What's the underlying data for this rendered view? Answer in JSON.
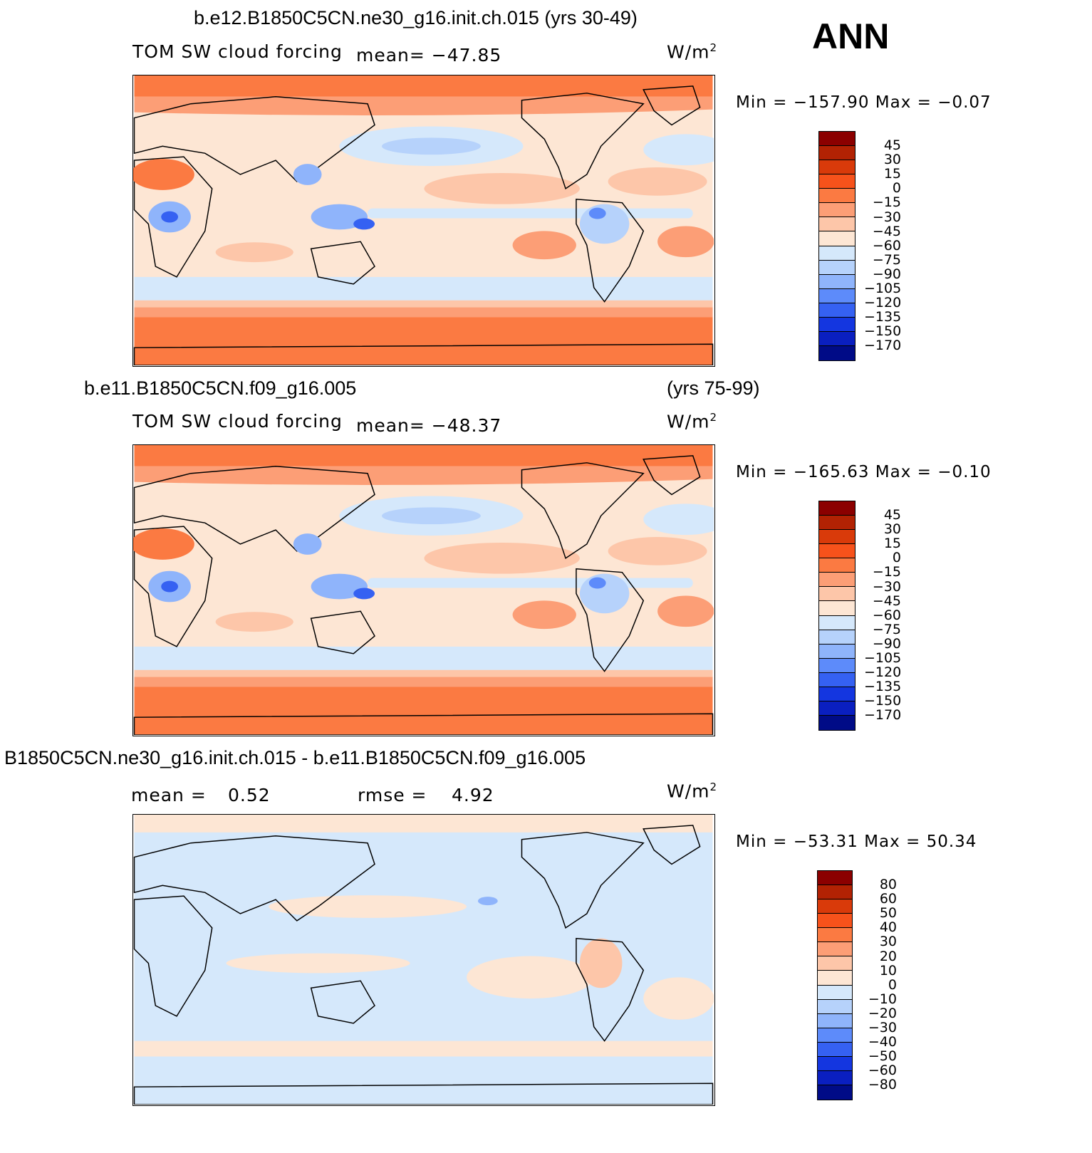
{
  "season_label": "ANN",
  "chart_data": [
    {
      "type": "heatmap",
      "title": "b.e12.B1850C5CN.ne30_g16.init.ch.015 (yrs 30-49)",
      "variable": "TOM SW cloud forcing",
      "stat_text": "mean=  −47.85",
      "units": "W/m",
      "units_exp": "2",
      "minmax_text": "Min  =  −157.90  Max  =    −0.07",
      "levels": [
        "45",
        "30",
        "15",
        "0",
        "−15",
        "−30",
        "−45",
        "−60",
        "−75",
        "−90",
        "−105",
        "−120",
        "−135",
        "−150",
        "−170"
      ],
      "colors": [
        "#8b0000",
        "#b22203",
        "#d93a0a",
        "#f7521b",
        "#fb7a42",
        "#fc9e76",
        "#fdc6a9",
        "#fde6d4",
        "#d5e8fb",
        "#b6d2fb",
        "#8fb4fb",
        "#5d8bfa",
        "#3561f2",
        "#1436e0",
        "#0a1fc0",
        "#000b87"
      ],
      "map_variant": "control"
    },
    {
      "type": "heatmap",
      "title_left": "b.e11.B1850C5CN.f09_g16.005",
      "title_right": "(yrs 75-99)",
      "variable": "TOM SW cloud forcing",
      "stat_text": "mean=  −48.37",
      "units": "W/m",
      "units_exp": "2",
      "minmax_text": "Min  =  −165.63  Max  =    −0.10",
      "levels": [
        "45",
        "30",
        "15",
        "0",
        "−15",
        "−30",
        "−45",
        "−60",
        "−75",
        "−90",
        "−105",
        "−120",
        "−135",
        "−150",
        "−170"
      ],
      "colors": [
        "#8b0000",
        "#b22203",
        "#d93a0a",
        "#f7521b",
        "#fb7a42",
        "#fc9e76",
        "#fdc6a9",
        "#fde6d4",
        "#d5e8fb",
        "#b6d2fb",
        "#8fb4fb",
        "#5d8bfa",
        "#3561f2",
        "#1436e0",
        "#0a1fc0",
        "#000b87"
      ],
      "map_variant": "control"
    },
    {
      "type": "heatmap",
      "title": "B1850C5CN.ne30_g16.init.ch.015 - b.e11.B1850C5CN.f09_g16.005",
      "stat_mean_label": "mean  =",
      "stat_mean_value": "0.52",
      "stat_rmse_label": "rmse  =",
      "stat_rmse_value": "4.92",
      "units": "W/m",
      "units_exp": "2",
      "minmax_text": "Min  =  −53.31  Max  =   50.34",
      "levels": [
        "80",
        "60",
        "50",
        "40",
        "30",
        "20",
        "10",
        "0",
        "−10",
        "−20",
        "−30",
        "−40",
        "−50",
        "−60",
        "−80"
      ],
      "colors": [
        "#8b0000",
        "#b22203",
        "#d93a0a",
        "#f7521b",
        "#fb7a42",
        "#fc9e76",
        "#fdc6a9",
        "#fde6d4",
        "#d5e8fb",
        "#b6d2fb",
        "#8fb4fb",
        "#5d8bfa",
        "#3561f2",
        "#1436e0",
        "#0a1fc0",
        "#000b87"
      ],
      "map_variant": "difference"
    }
  ]
}
